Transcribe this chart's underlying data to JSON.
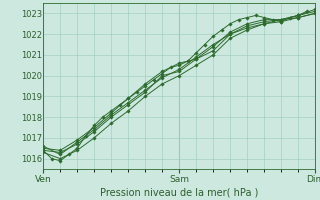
{
  "title": "",
  "xlabel": "Pression niveau de la mer( hPa )",
  "ylabel": "",
  "background_color": "#cce8df",
  "plot_bg_color": "#cce8df",
  "grid_color": "#99ccbb",
  "grid_minor_color": "#b8ddd4",
  "line_color": "#2d6b2d",
  "marker_color": "#2d6b2d",
  "text_color": "#2d5f2d",
  "ylim": [
    1015.5,
    1023.5
  ],
  "yticks": [
    1016,
    1017,
    1018,
    1019,
    1020,
    1021,
    1022,
    1023
  ],
  "xlim": [
    0,
    96
  ],
  "xtick_positions": [
    0,
    48,
    96
  ],
  "xtick_labels": [
    "Ven",
    "Sam",
    "Dim"
  ],
  "series": [
    [
      0,
      1016.4,
      3,
      1016.0,
      6,
      1015.9,
      9,
      1016.2,
      12,
      1016.5,
      15,
      1017.1,
      18,
      1017.6,
      21,
      1018.0,
      24,
      1018.3,
      27,
      1018.6,
      30,
      1018.9,
      33,
      1019.2,
      36,
      1019.5,
      39,
      1019.8,
      42,
      1020.1,
      45,
      1020.4,
      48,
      1020.5,
      51,
      1020.7,
      54,
      1021.1,
      57,
      1021.5,
      60,
      1021.9,
      63,
      1022.2,
      66,
      1022.5,
      69,
      1022.7,
      72,
      1022.8,
      75,
      1022.9,
      78,
      1022.8,
      81,
      1022.7,
      84,
      1022.6,
      87,
      1022.8,
      90,
      1022.9,
      93,
      1023.1
    ],
    [
      0,
      1016.6,
      6,
      1016.2,
      12,
      1016.8,
      18,
      1017.4,
      24,
      1018.1,
      30,
      1018.7,
      36,
      1019.3,
      42,
      1019.9,
      48,
      1020.3,
      54,
      1020.9,
      60,
      1021.5,
      66,
      1022.0,
      72,
      1022.3,
      78,
      1022.5,
      84,
      1022.6,
      90,
      1022.8,
      96,
      1023.0
    ],
    [
      0,
      1016.4,
      6,
      1016.3,
      12,
      1016.7,
      18,
      1017.3,
      24,
      1018.0,
      30,
      1018.6,
      36,
      1019.2,
      42,
      1020.0,
      48,
      1020.2,
      54,
      1020.8,
      60,
      1021.4,
      66,
      1022.1,
      72,
      1022.5,
      78,
      1022.7,
      84,
      1022.7,
      90,
      1022.9,
      96,
      1023.1
    ],
    [
      0,
      1016.5,
      6,
      1016.4,
      12,
      1016.9,
      18,
      1017.5,
      24,
      1018.2,
      30,
      1018.9,
      36,
      1019.6,
      42,
      1020.2,
      48,
      1020.6,
      54,
      1020.8,
      60,
      1021.2,
      66,
      1022.0,
      72,
      1022.4,
      78,
      1022.6,
      84,
      1022.7,
      90,
      1022.9,
      96,
      1023.2
    ],
    [
      0,
      1016.3,
      6,
      1016.0,
      12,
      1016.4,
      18,
      1017.0,
      24,
      1017.7,
      30,
      1018.3,
      36,
      1019.0,
      42,
      1019.6,
      48,
      1020.0,
      54,
      1020.5,
      60,
      1021.0,
      66,
      1021.8,
      72,
      1022.2,
      78,
      1022.5,
      84,
      1022.7,
      90,
      1022.8,
      96,
      1023.0
    ]
  ]
}
